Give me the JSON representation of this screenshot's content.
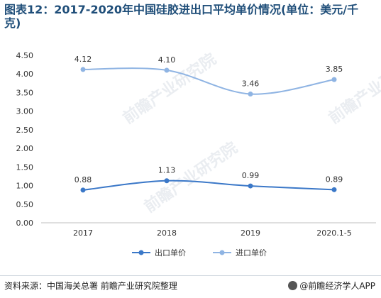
{
  "title": "图表12：2017-2020年中国硅胶进出口平均单价情况(单位：美元/千克)",
  "source": "资料来源：中国海关总署 前瞻产业研究院整理",
  "brand": "@前瞻经济学人APP",
  "watermark": "前瞻产业研究院",
  "colors": {
    "export": "#3b78c8",
    "import": "#8fb4e3",
    "axis": "#888888"
  },
  "chart_data": {
    "type": "line",
    "title": "图表12：2017-2020年中国硅胶进出口平均单价情况(单位：美元/千克)",
    "categories": [
      "2017",
      "2018",
      "2019",
      "2020.1-5"
    ],
    "ylim": [
      0,
      4.5
    ],
    "yticks": [
      "0.00",
      "0.50",
      "1.00",
      "1.50",
      "2.00",
      "2.50",
      "3.00",
      "3.50",
      "4.00",
      "4.50"
    ],
    "grid": false,
    "legend": "bottom",
    "series": [
      {
        "name": "出口单价",
        "values": [
          0.88,
          1.13,
          0.99,
          0.89
        ],
        "labels": [
          "0.88",
          "1.13",
          "0.99",
          "0.89"
        ],
        "color": "#3b78c8"
      },
      {
        "name": "进口单价",
        "values": [
          4.12,
          4.1,
          3.46,
          3.85
        ],
        "labels": [
          "4.12",
          "4.10",
          "3.46",
          "3.85"
        ],
        "color": "#8fb4e3"
      }
    ]
  }
}
